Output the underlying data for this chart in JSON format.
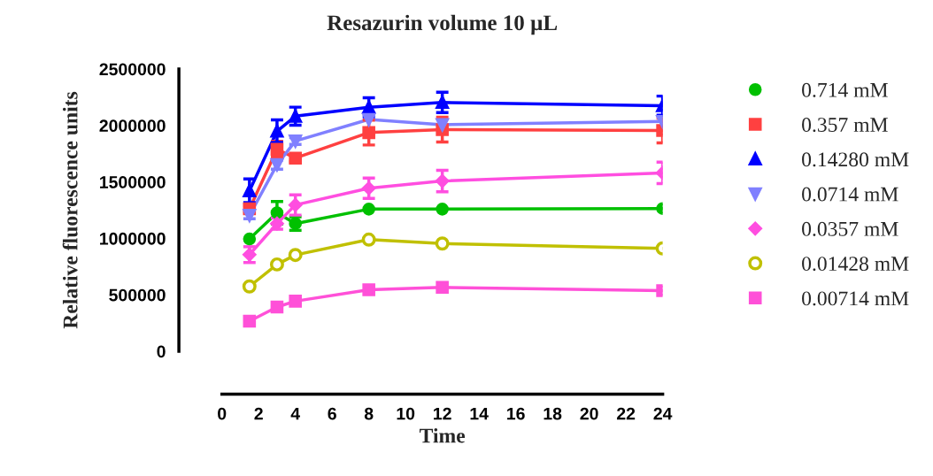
{
  "chart_data": {
    "type": "line",
    "title": "Resazurin volume 10 µL",
    "xlabel": "Time",
    "ylabel": "Relative fluorescence units",
    "x": [
      1.5,
      3,
      4,
      8,
      12,
      24
    ],
    "xlim": [
      0,
      24
    ],
    "xticks": [
      0,
      2,
      4,
      6,
      8,
      10,
      12,
      14,
      16,
      18,
      20,
      22,
      24
    ],
    "ylim": [
      0,
      2500000
    ],
    "yticks": [
      0,
      500000,
      1000000,
      1500000,
      2000000,
      2500000
    ],
    "grid": false,
    "legend": "right",
    "line_style": "solid",
    "series": [
      {
        "name": "0.714 mM",
        "color": "#00c000",
        "marker": "circle",
        "values": [
          995000,
          1227000,
          1131000,
          1259000,
          1259000,
          1264000
        ],
        "errors": [
          null,
          100000,
          60000,
          null,
          null,
          null
        ]
      },
      {
        "name": "0.357 mM",
        "color": "#ff4040",
        "marker": "square",
        "values": [
          1262000,
          1789000,
          1711000,
          1937000,
          1963000,
          1955000
        ],
        "errors": [
          30000,
          70000,
          30000,
          110000,
          110000,
          110000
        ]
      },
      {
        "name": "0.14280 mM",
        "color": "#0000ff",
        "marker": "triangle",
        "values": [
          1421000,
          1949000,
          2082000,
          2161000,
          2204000,
          2175000
        ],
        "errors": [
          105000,
          100000,
          80000,
          85000,
          90000,
          85000
        ]
      },
      {
        "name": "0.0714 mM",
        "color": "#8080ff",
        "marker": "triangle_down",
        "values": [
          1204000,
          1653000,
          1862000,
          2053000,
          2007000,
          2036000
        ],
        "errors": [
          30000,
          40000,
          30000,
          null,
          null,
          null
        ]
      },
      {
        "name": "0.0357 mM",
        "color": "#ff4ee0",
        "marker": "diamond",
        "values": [
          856000,
          1131000,
          1296000,
          1444000,
          1508000,
          1580000
        ],
        "errors": [
          70000,
          50000,
          90000,
          90000,
          95000,
          95000
        ]
      },
      {
        "name": "0.01428 mM",
        "color": "#c0c000",
        "marker": "open_circle",
        "values": [
          574000,
          769000,
          853000,
          989000,
          954000,
          911000
        ]
      },
      {
        "name": "0.00714 mM",
        "color": "#ff50d8",
        "marker": "square",
        "values": [
          267000,
          392000,
          444000,
          545000,
          566000,
          537000
        ]
      }
    ]
  }
}
